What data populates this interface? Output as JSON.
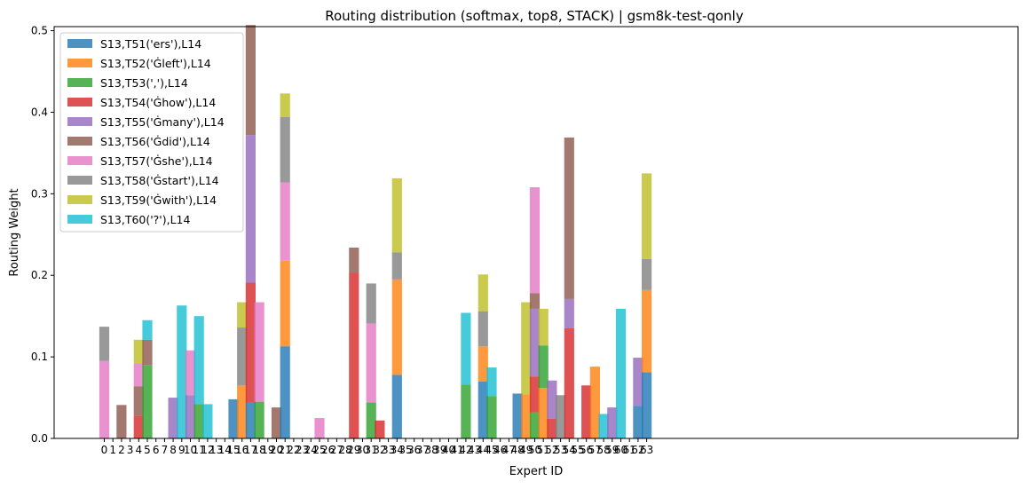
{
  "chart_data": {
    "type": "bar",
    "stacked": true,
    "title": "Routing distribution (softmax, top8, STACK) | gsm8k-test-qonly",
    "xlabel": "Expert ID",
    "ylabel": "Routing Weight",
    "ylim": [
      0,
      0.505
    ],
    "yticks": [
      "0.0",
      "0.1",
      "0.2",
      "0.3",
      "0.4",
      "0.5"
    ],
    "ytick_values": [
      0,
      0.1,
      0.2,
      0.3,
      0.4,
      0.5
    ],
    "grid": false,
    "legend_position": "upper-left",
    "categories": [
      "0",
      "1",
      "2",
      "3",
      "4",
      "5",
      "6",
      "7",
      "8",
      "9",
      "10",
      "11",
      "12",
      "13",
      "14",
      "15",
      "16",
      "17",
      "18",
      "19",
      "20",
      "21",
      "22",
      "23",
      "24",
      "25",
      "26",
      "27",
      "28",
      "29",
      "30",
      "31",
      "32",
      "33",
      "34",
      "35",
      "36",
      "37",
      "38",
      "39",
      "40",
      "41",
      "42",
      "43",
      "44",
      "45",
      "46",
      "47",
      "48",
      "49",
      "50",
      "51",
      "52",
      "53",
      "54",
      "55",
      "56",
      "57",
      "58",
      "59",
      "60",
      "61",
      "62",
      "63"
    ],
    "series": [
      {
        "name": "S13,T51('ers'),L14",
        "color": "#1f77b4",
        "values": [
          0,
          0,
          0,
          0,
          0,
          0,
          0,
          0,
          0,
          0,
          0,
          0,
          0,
          0,
          0,
          0.048,
          0,
          0.044,
          0,
          0,
          0,
          0.113,
          0,
          0,
          0,
          0,
          0,
          0,
          0,
          0,
          0,
          0,
          0,
          0,
          0.078,
          0,
          0,
          0,
          0,
          0,
          0,
          0,
          0,
          0,
          0.07,
          0,
          0,
          0,
          0.055,
          0,
          0,
          0,
          0,
          0,
          0,
          0,
          0,
          0,
          0,
          0,
          0,
          0,
          0.04,
          0.081
        ]
      },
      {
        "name": "S13,T52('Ġleft'),L14",
        "color": "#ff7f0e",
        "values": [
          0,
          0,
          0,
          0,
          0,
          0,
          0,
          0,
          0,
          0,
          0,
          0,
          0,
          0,
          0,
          0,
          0.065,
          0,
          0,
          0,
          0,
          0.105,
          0,
          0,
          0,
          0,
          0,
          0,
          0,
          0,
          0,
          0,
          0,
          0,
          0.117,
          0,
          0,
          0,
          0,
          0,
          0,
          0,
          0,
          0,
          0.043,
          0,
          0,
          0,
          0,
          0.054,
          0,
          0.062,
          0,
          0,
          0,
          0,
          0,
          0.088,
          0,
          0,
          0,
          0,
          0,
          0.101
        ]
      },
      {
        "name": "S13,T53(','),L14",
        "color": "#2ca02c",
        "values": [
          0,
          0,
          0,
          0,
          0,
          0.09,
          0,
          0,
          0,
          0,
          0,
          0.042,
          0,
          0,
          0,
          0,
          0,
          0,
          0.045,
          0,
          0,
          0,
          0,
          0,
          0,
          0,
          0,
          0,
          0,
          0,
          0,
          0.044,
          0,
          0,
          0,
          0,
          0,
          0,
          0,
          0,
          0,
          0,
          0.066,
          0,
          0,
          0.052,
          0,
          0,
          0,
          0,
          0.032,
          0.052,
          0,
          0,
          0,
          0,
          0,
          0,
          0,
          0,
          0,
          0,
          0,
          0
        ]
      },
      {
        "name": "S13,T54('Ġhow'),L14",
        "color": "#d62728",
        "values": [
          0,
          0,
          0,
          0,
          0.028,
          0,
          0,
          0,
          0,
          0,
          0,
          0,
          0,
          0,
          0,
          0,
          0,
          0.147,
          0,
          0,
          0,
          0,
          0,
          0,
          0,
          0,
          0,
          0,
          0,
          0.203,
          0,
          0,
          0.022,
          0,
          0,
          0,
          0,
          0,
          0,
          0,
          0,
          0,
          0,
          0,
          0,
          0,
          0,
          0,
          0,
          0,
          0.044,
          0,
          0.024,
          0,
          0.135,
          0,
          0.065,
          0,
          0,
          0,
          0,
          0,
          0,
          0
        ]
      },
      {
        "name": "S13,T55('Ġmany'),L14",
        "color": "#9467bd",
        "values": [
          0,
          0,
          0,
          0,
          0,
          0,
          0,
          0,
          0.05,
          0,
          0.053,
          0,
          0,
          0,
          0,
          0,
          0,
          0.181,
          0,
          0,
          0,
          0,
          0,
          0,
          0,
          0,
          0,
          0,
          0,
          0,
          0,
          0,
          0,
          0,
          0,
          0,
          0,
          0,
          0,
          0,
          0,
          0,
          0,
          0,
          0,
          0,
          0,
          0,
          0,
          0,
          0.083,
          0,
          0.047,
          0,
          0.036,
          0,
          0,
          0,
          0,
          0.038,
          0,
          0,
          0.059,
          0
        ]
      },
      {
        "name": "S13,T56('Ġdid'),L14",
        "color": "#8c564b",
        "values": [
          0,
          0,
          0.041,
          0,
          0.036,
          0.031,
          0,
          0,
          0,
          0,
          0,
          0,
          0,
          0,
          0,
          0,
          0,
          0.135,
          0,
          0,
          0.038,
          0,
          0,
          0,
          0,
          0,
          0,
          0,
          0,
          0.031,
          0,
          0,
          0,
          0,
          0,
          0,
          0,
          0,
          0,
          0,
          0,
          0,
          0,
          0,
          0,
          0,
          0,
          0,
          0,
          0,
          0.019,
          0,
          0,
          0,
          0.198,
          0,
          0,
          0,
          0,
          0,
          0,
          0,
          0,
          0
        ]
      },
      {
        "name": "S13,T57('Ġshe'),L14",
        "color": "#e377c2",
        "values": [
          0.095,
          0,
          0,
          0,
          0.028,
          0,
          0,
          0,
          0,
          0,
          0.055,
          0,
          0,
          0,
          0,
          0,
          0,
          0,
          0.122,
          0,
          0,
          0.096,
          0,
          0,
          0,
          0.025,
          0,
          0,
          0,
          0,
          0,
          0.097,
          0,
          0,
          0,
          0,
          0,
          0,
          0,
          0,
          0,
          0,
          0,
          0,
          0,
          0,
          0,
          0,
          0,
          0,
          0.13,
          0,
          0,
          0,
          0,
          0,
          0,
          0,
          0,
          0,
          0,
          0,
          0,
          0
        ]
      },
      {
        "name": "S13,T58('Ġstart'),L14",
        "color": "#7f7f7f",
        "values": [
          0.042,
          0,
          0,
          0,
          0,
          0,
          0,
          0,
          0,
          0,
          0,
          0,
          0,
          0,
          0,
          0,
          0.071,
          0,
          0,
          0,
          0,
          0.08,
          0,
          0,
          0,
          0,
          0,
          0,
          0,
          0,
          0,
          0.049,
          0,
          0,
          0.033,
          0,
          0,
          0,
          0,
          0,
          0,
          0,
          0,
          0,
          0.043,
          0,
          0,
          0,
          0,
          0,
          0,
          0,
          0,
          0.053,
          0,
          0,
          0,
          0,
          0,
          0,
          0,
          0,
          0,
          0.038
        ]
      },
      {
        "name": "S13,T59('Ġwith'),L14",
        "color": "#bcbd22",
        "values": [
          0,
          0,
          0,
          0,
          0.029,
          0,
          0,
          0,
          0,
          0,
          0,
          0,
          0,
          0,
          0,
          0,
          0.031,
          0,
          0,
          0,
          0,
          0.029,
          0,
          0,
          0,
          0,
          0,
          0,
          0,
          0,
          0,
          0,
          0,
          0,
          0.091,
          0,
          0,
          0,
          0,
          0,
          0,
          0,
          0,
          0,
          0.045,
          0,
          0,
          0,
          0,
          0.113,
          0,
          0.045,
          0,
          0,
          0,
          0,
          0,
          0,
          0,
          0,
          0,
          0,
          0,
          0.105
        ]
      },
      {
        "name": "S13,T60('?'),L14",
        "color": "#17becf",
        "values": [
          0,
          0,
          0,
          0,
          0,
          0.024,
          0,
          0,
          0,
          0.163,
          0,
          0.108,
          0.042,
          0,
          0,
          0,
          0,
          0,
          0,
          0,
          0,
          0,
          0,
          0,
          0,
          0,
          0,
          0,
          0,
          0,
          0,
          0,
          0,
          0,
          0,
          0,
          0,
          0,
          0,
          0,
          0,
          0,
          0.088,
          0,
          0,
          0.035,
          0,
          0,
          0,
          0,
          0,
          0,
          0,
          0,
          0,
          0,
          0,
          0,
          0.03,
          0,
          0.159,
          0,
          0,
          0
        ]
      }
    ]
  }
}
